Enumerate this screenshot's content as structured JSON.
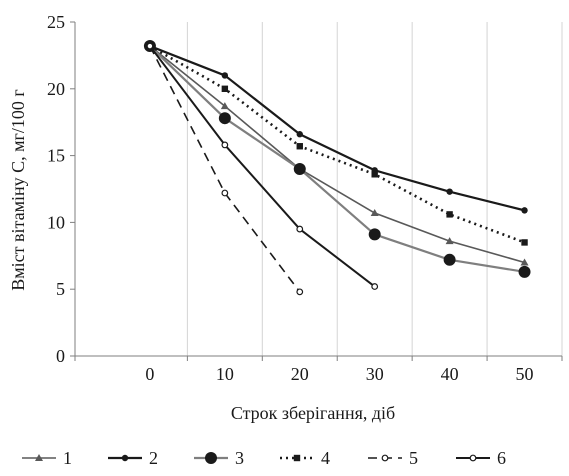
{
  "chart_data": {
    "type": "line",
    "xlabel": "Строк зберігання, діб",
    "ylabel": "Вміст вітаміну С, мг/100 г",
    "x_ticks": [
      0,
      10,
      20,
      30,
      40,
      50
    ],
    "y_ticks": [
      0,
      5,
      10,
      15,
      20,
      25
    ],
    "xlim": [
      -10,
      55
    ],
    "ylim": [
      0,
      25
    ],
    "grid": "vertical",
    "legend_position": "bottom",
    "series": [
      {
        "name": "1",
        "x": [
          0,
          10,
          20,
          30,
          40,
          50
        ],
        "y": [
          23.2,
          18.7,
          14.0,
          10.7,
          8.6,
          7.0
        ],
        "color": "#595959",
        "marker": "triangle",
        "dash": "solid"
      },
      {
        "name": "2",
        "x": [
          0,
          10,
          20,
          30,
          40,
          50
        ],
        "y": [
          23.2,
          21.0,
          16.6,
          13.9,
          12.3,
          10.9
        ],
        "color": "#1a1a1a",
        "marker": "dot",
        "dash": "solid"
      },
      {
        "name": "3",
        "x": [
          0,
          10,
          20,
          30,
          40,
          50
        ],
        "y": [
          23.2,
          17.8,
          14.0,
          9.1,
          7.2,
          6.3
        ],
        "color": "#7f7f7f",
        "marker": "big-dot",
        "dash": "solid"
      },
      {
        "name": "4",
        "x": [
          0,
          10,
          20,
          30,
          40,
          50
        ],
        "y": [
          23.2,
          20.0,
          15.7,
          13.6,
          10.6,
          8.5
        ],
        "color": "#1a1a1a",
        "marker": "square",
        "dash": "dotted"
      },
      {
        "name": "5",
        "x": [
          0,
          10,
          20
        ],
        "y": [
          23.2,
          12.2,
          4.8
        ],
        "color": "#1a1a1a",
        "marker": "open-circle",
        "dash": "dashed"
      },
      {
        "name": "6",
        "x": [
          0,
          10,
          20,
          30
        ],
        "y": [
          23.2,
          15.8,
          9.5,
          5.2
        ],
        "color": "#1a1a1a",
        "marker": "open-circle",
        "dash": "solid"
      }
    ]
  }
}
